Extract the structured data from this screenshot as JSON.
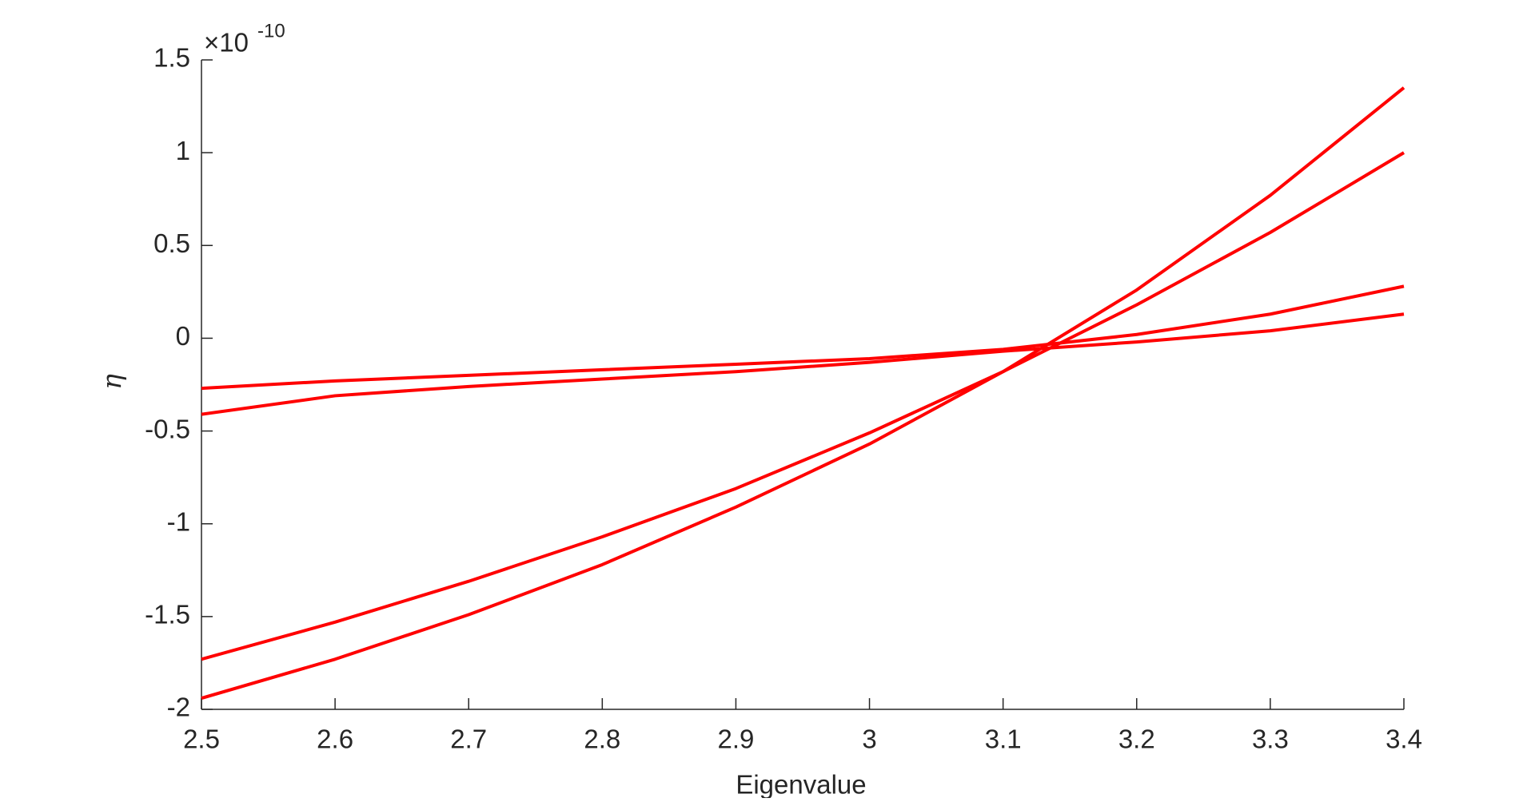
{
  "chart_data": {
    "type": "line",
    "xlabel": "Eigenvalue",
    "ylabel": "η",
    "y_scale_base": "×10",
    "y_scale_exponent": "-10",
    "x": [
      2.5,
      2.6,
      2.7,
      2.8,
      2.9,
      3.0,
      3.1,
      3.2,
      3.3,
      3.4
    ],
    "series": [
      {
        "color": "#ff0000",
        "values": [
          -1.94,
          -1.73,
          -1.49,
          -1.22,
          -0.91,
          -0.57,
          -0.18,
          0.26,
          0.77,
          1.35
        ]
      },
      {
        "color": "#ff0000",
        "values": [
          -1.73,
          -1.53,
          -1.31,
          -1.07,
          -0.81,
          -0.51,
          -0.18,
          0.18,
          0.57,
          1.0
        ]
      },
      {
        "color": "#ff0000",
        "values": [
          -0.27,
          -0.23,
          -0.2,
          -0.17,
          -0.14,
          -0.11,
          -0.06,
          0.02,
          0.13,
          0.28
        ]
      },
      {
        "color": "#ff0000",
        "values": [
          -0.41,
          -0.31,
          -0.26,
          -0.22,
          -0.18,
          -0.13,
          -0.07,
          -0.02,
          0.04,
          0.13
        ]
      }
    ],
    "xlim": [
      2.5,
      3.4
    ],
    "xticks": [
      2.5,
      2.6,
      2.7,
      2.8,
      2.9,
      3,
      3.1,
      3.2,
      3.3,
      3.4
    ],
    "ylim": [
      -2,
      1.5
    ],
    "yticks": [
      -2,
      -1.5,
      -1,
      -0.5,
      0,
      0.5,
      1,
      1.5
    ],
    "grid": false
  }
}
